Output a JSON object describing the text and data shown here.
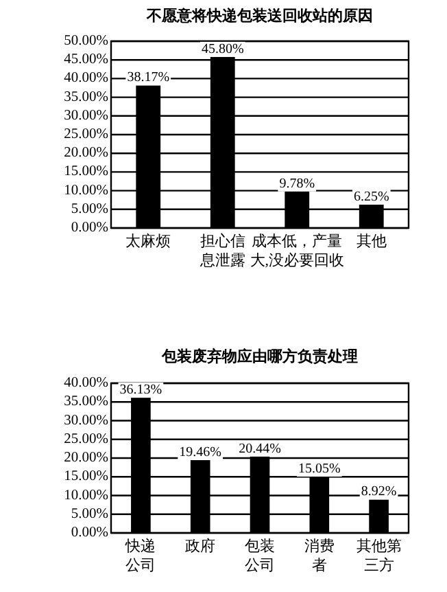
{
  "chart_data": [
    {
      "type": "bar",
      "title": "不愿意将快递包装送回收站的原因",
      "categories": [
        "太麻烦",
        "担心信息泄露",
        "成本低，产量大,没必要回收",
        "其他"
      ],
      "values": [
        38.17,
        45.8,
        9.78,
        6.25
      ],
      "value_labels": [
        "38.17%",
        "45.80%",
        "9.78%",
        "6.25%"
      ],
      "color": "#000000",
      "ylim": [
        0,
        50
      ],
      "yticks": [
        {
          "value": 0,
          "label": "0.00%"
        },
        {
          "value": 5,
          "label": "5.00%"
        },
        {
          "value": 10,
          "label": "10.00%"
        },
        {
          "value": 15,
          "label": "15.00%"
        },
        {
          "value": 20,
          "label": "20.00%"
        },
        {
          "value": 25,
          "label": "25.00%"
        },
        {
          "value": 30,
          "label": "30.00%"
        },
        {
          "value": 35,
          "label": "35.00%"
        },
        {
          "value": 40,
          "label": "40.00%"
        },
        {
          "value": 45,
          "label": "45.00%"
        },
        {
          "value": 50,
          "label": "50.00%"
        }
      ],
      "grid": "y"
    },
    {
      "type": "bar",
      "title": "包装废弃物应由哪方负责处理",
      "categories": [
        "快递公司",
        "政府",
        "包装公司",
        "消费者",
        "其他第三方"
      ],
      "values": [
        36.13,
        19.46,
        20.44,
        15.05,
        8.92
      ],
      "value_labels": [
        "36.13%",
        "19.46%",
        "20.44%",
        "15.05%",
        "8.92%"
      ],
      "color": "#000000",
      "ylim": [
        0,
        40
      ],
      "yticks": [
        {
          "value": 0,
          "label": "0.00%"
        },
        {
          "value": 5,
          "label": "5.00%"
        },
        {
          "value": 10,
          "label": "10.00%"
        },
        {
          "value": 15,
          "label": "15.00%"
        },
        {
          "value": 20,
          "label": "20.00%"
        },
        {
          "value": 25,
          "label": "25.00%"
        },
        {
          "value": 30,
          "label": "30.00%"
        },
        {
          "value": 35,
          "label": "35.00%"
        },
        {
          "value": 40,
          "label": "40.00%"
        }
      ],
      "grid": "y"
    }
  ]
}
